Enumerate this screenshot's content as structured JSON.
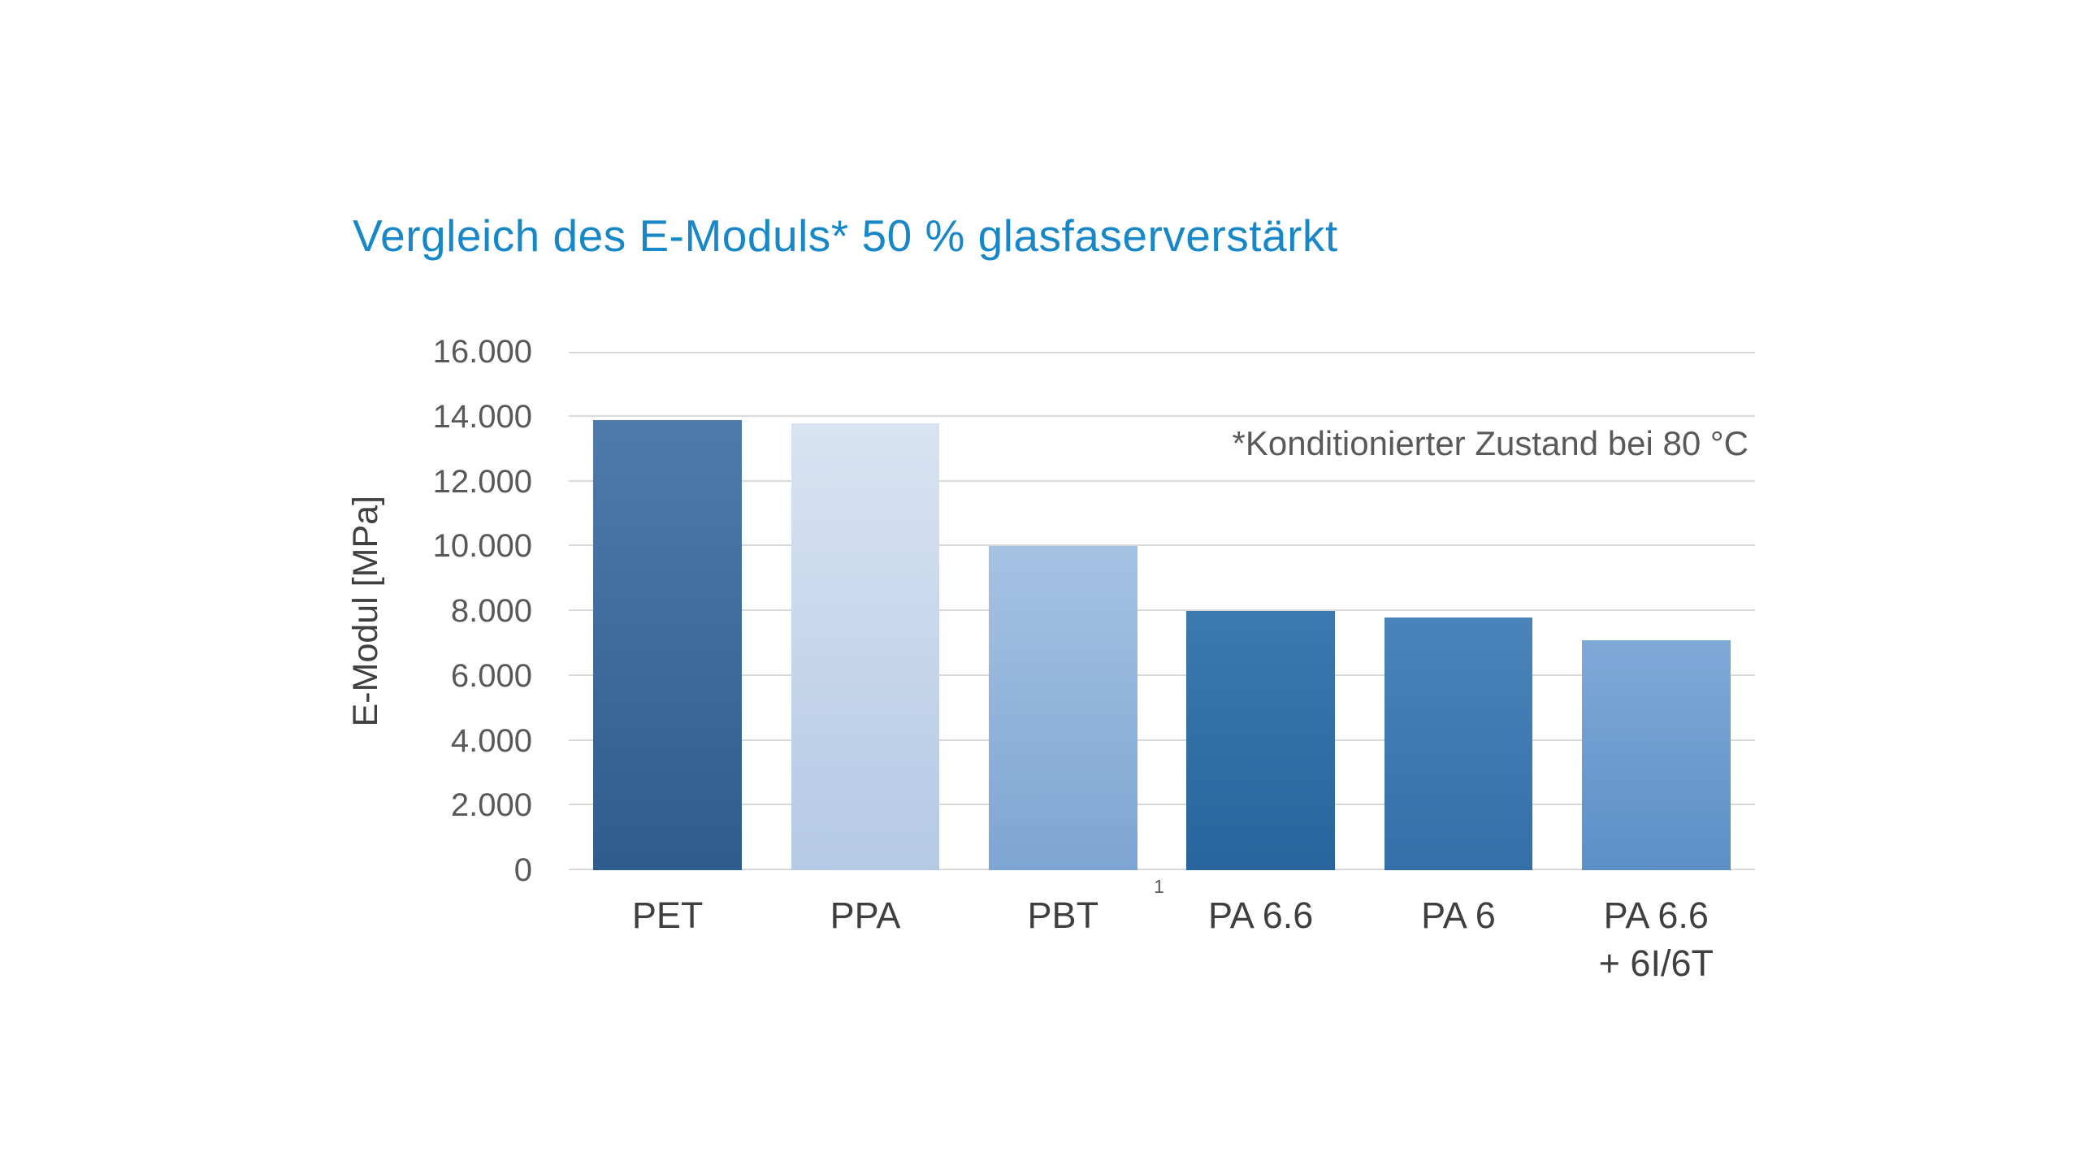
{
  "title": "Vergleich des E-Moduls* 50 % glasfaserverstärkt",
  "annotation": "*Konditionierter Zustand bei 80 °C",
  "footnote_marker": "1",
  "colors": {
    "title_accent": "#1787c7",
    "axis_text": "#595959",
    "category_text": "#3f3f3f",
    "gridline": "#d9d9d9",
    "background": "#ffffff"
  },
  "chart_data": {
    "type": "bar",
    "title": "Vergleich des E-Moduls* 50 % glasfaserverstärkt",
    "xlabel": "",
    "ylabel": "E-Modul [MPa]",
    "ylim": [
      0,
      16000
    ],
    "ytick_step": 2000,
    "ytick_labels": [
      "0",
      "2.000",
      "4.000",
      "6.000",
      "8.000",
      "10.000",
      "12.000",
      "14.000",
      "16.000"
    ],
    "grid": true,
    "legend": false,
    "annotation": "*Konditionierter Zustand bei 80 °C",
    "categories": [
      "PET",
      "PPA",
      "PBT",
      "PA 6.6",
      "PA 6",
      "PA 6.6\n+ 6I/6T"
    ],
    "values": [
      13900,
      13800,
      10000,
      8000,
      7800,
      7100
    ],
    "bar_gradients": [
      [
        "#4e7baa",
        "#2e5c8d"
      ],
      [
        "#d8e3f2",
        "#b4c9e5"
      ],
      [
        "#a6c2e3",
        "#7da5d2"
      ],
      [
        "#3c79b0",
        "#28649d"
      ],
      [
        "#4a84ba",
        "#346fa9"
      ],
      [
        "#7fa9d7",
        "#5b90c6"
      ]
    ]
  }
}
